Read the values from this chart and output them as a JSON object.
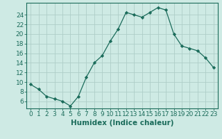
{
  "x": [
    0,
    1,
    2,
    3,
    4,
    5,
    6,
    7,
    8,
    9,
    10,
    11,
    12,
    13,
    14,
    15,
    16,
    17,
    18,
    19,
    20,
    21,
    22,
    23
  ],
  "y": [
    9.5,
    8.5,
    7.0,
    6.5,
    6.0,
    5.0,
    7.0,
    11.0,
    14.0,
    15.5,
    18.5,
    21.0,
    24.5,
    24.0,
    23.5,
    24.5,
    25.5,
    25.0,
    20.0,
    17.5,
    17.0,
    16.5,
    15.0,
    13.0
  ],
  "line_color": "#1a6b5a",
  "marker": "D",
  "markersize": 2.2,
  "linewidth": 0.9,
  "xlabel": "Humidex (Indice chaleur)",
  "ylabel_ticks": [
    6,
    8,
    10,
    12,
    14,
    16,
    18,
    20,
    22,
    24
  ],
  "ylim": [
    4.5,
    26.5
  ],
  "xlim": [
    -0.5,
    23.5
  ],
  "background_color": "#ceeae4",
  "grid_color": "#aecec8",
  "xlabel_fontsize": 7.5,
  "tick_fontsize": 6.5
}
